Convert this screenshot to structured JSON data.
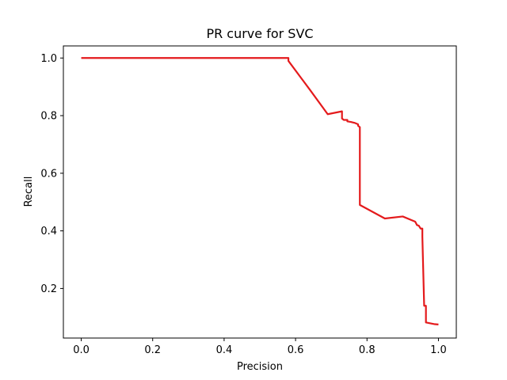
{
  "chart_data": {
    "type": "line",
    "title": "PR curve for SVC",
    "xlabel": "Precision",
    "ylabel": "Recall",
    "xlim": [
      -0.05,
      1.05
    ],
    "ylim": [
      0.028,
      1.042
    ],
    "xticks": [
      0.0,
      0.2,
      0.4,
      0.6,
      0.8,
      1.0
    ],
    "xtick_labels": [
      "0.0",
      "0.2",
      "0.4",
      "0.6",
      "0.8",
      "1.0"
    ],
    "yticks": [
      0.2,
      0.4,
      0.6,
      0.8,
      1.0
    ],
    "ytick_labels": [
      "0.2",
      "0.4",
      "0.6",
      "0.8",
      "1.0"
    ],
    "grid": false,
    "series": [
      {
        "color": "#e41a1c",
        "x": [
          0.0,
          0.58,
          0.58,
          0.64,
          0.69,
          0.73,
          0.73,
          0.735,
          0.745,
          0.745,
          0.755,
          0.765,
          0.775,
          0.775,
          0.78,
          0.78,
          0.78,
          0.85,
          0.9,
          0.935,
          0.94,
          0.945,
          0.95,
          0.955,
          0.955,
          0.96,
          0.965,
          0.965,
          0.99,
          1.0
        ],
        "y": [
          1.0,
          1.0,
          0.99,
          0.89,
          0.805,
          0.815,
          0.79,
          0.785,
          0.785,
          0.78,
          0.778,
          0.775,
          0.77,
          0.765,
          0.76,
          0.72,
          0.49,
          0.443,
          0.45,
          0.432,
          0.42,
          0.418,
          0.408,
          0.408,
          0.38,
          0.14,
          0.14,
          0.082,
          0.076,
          0.075
        ]
      }
    ]
  }
}
